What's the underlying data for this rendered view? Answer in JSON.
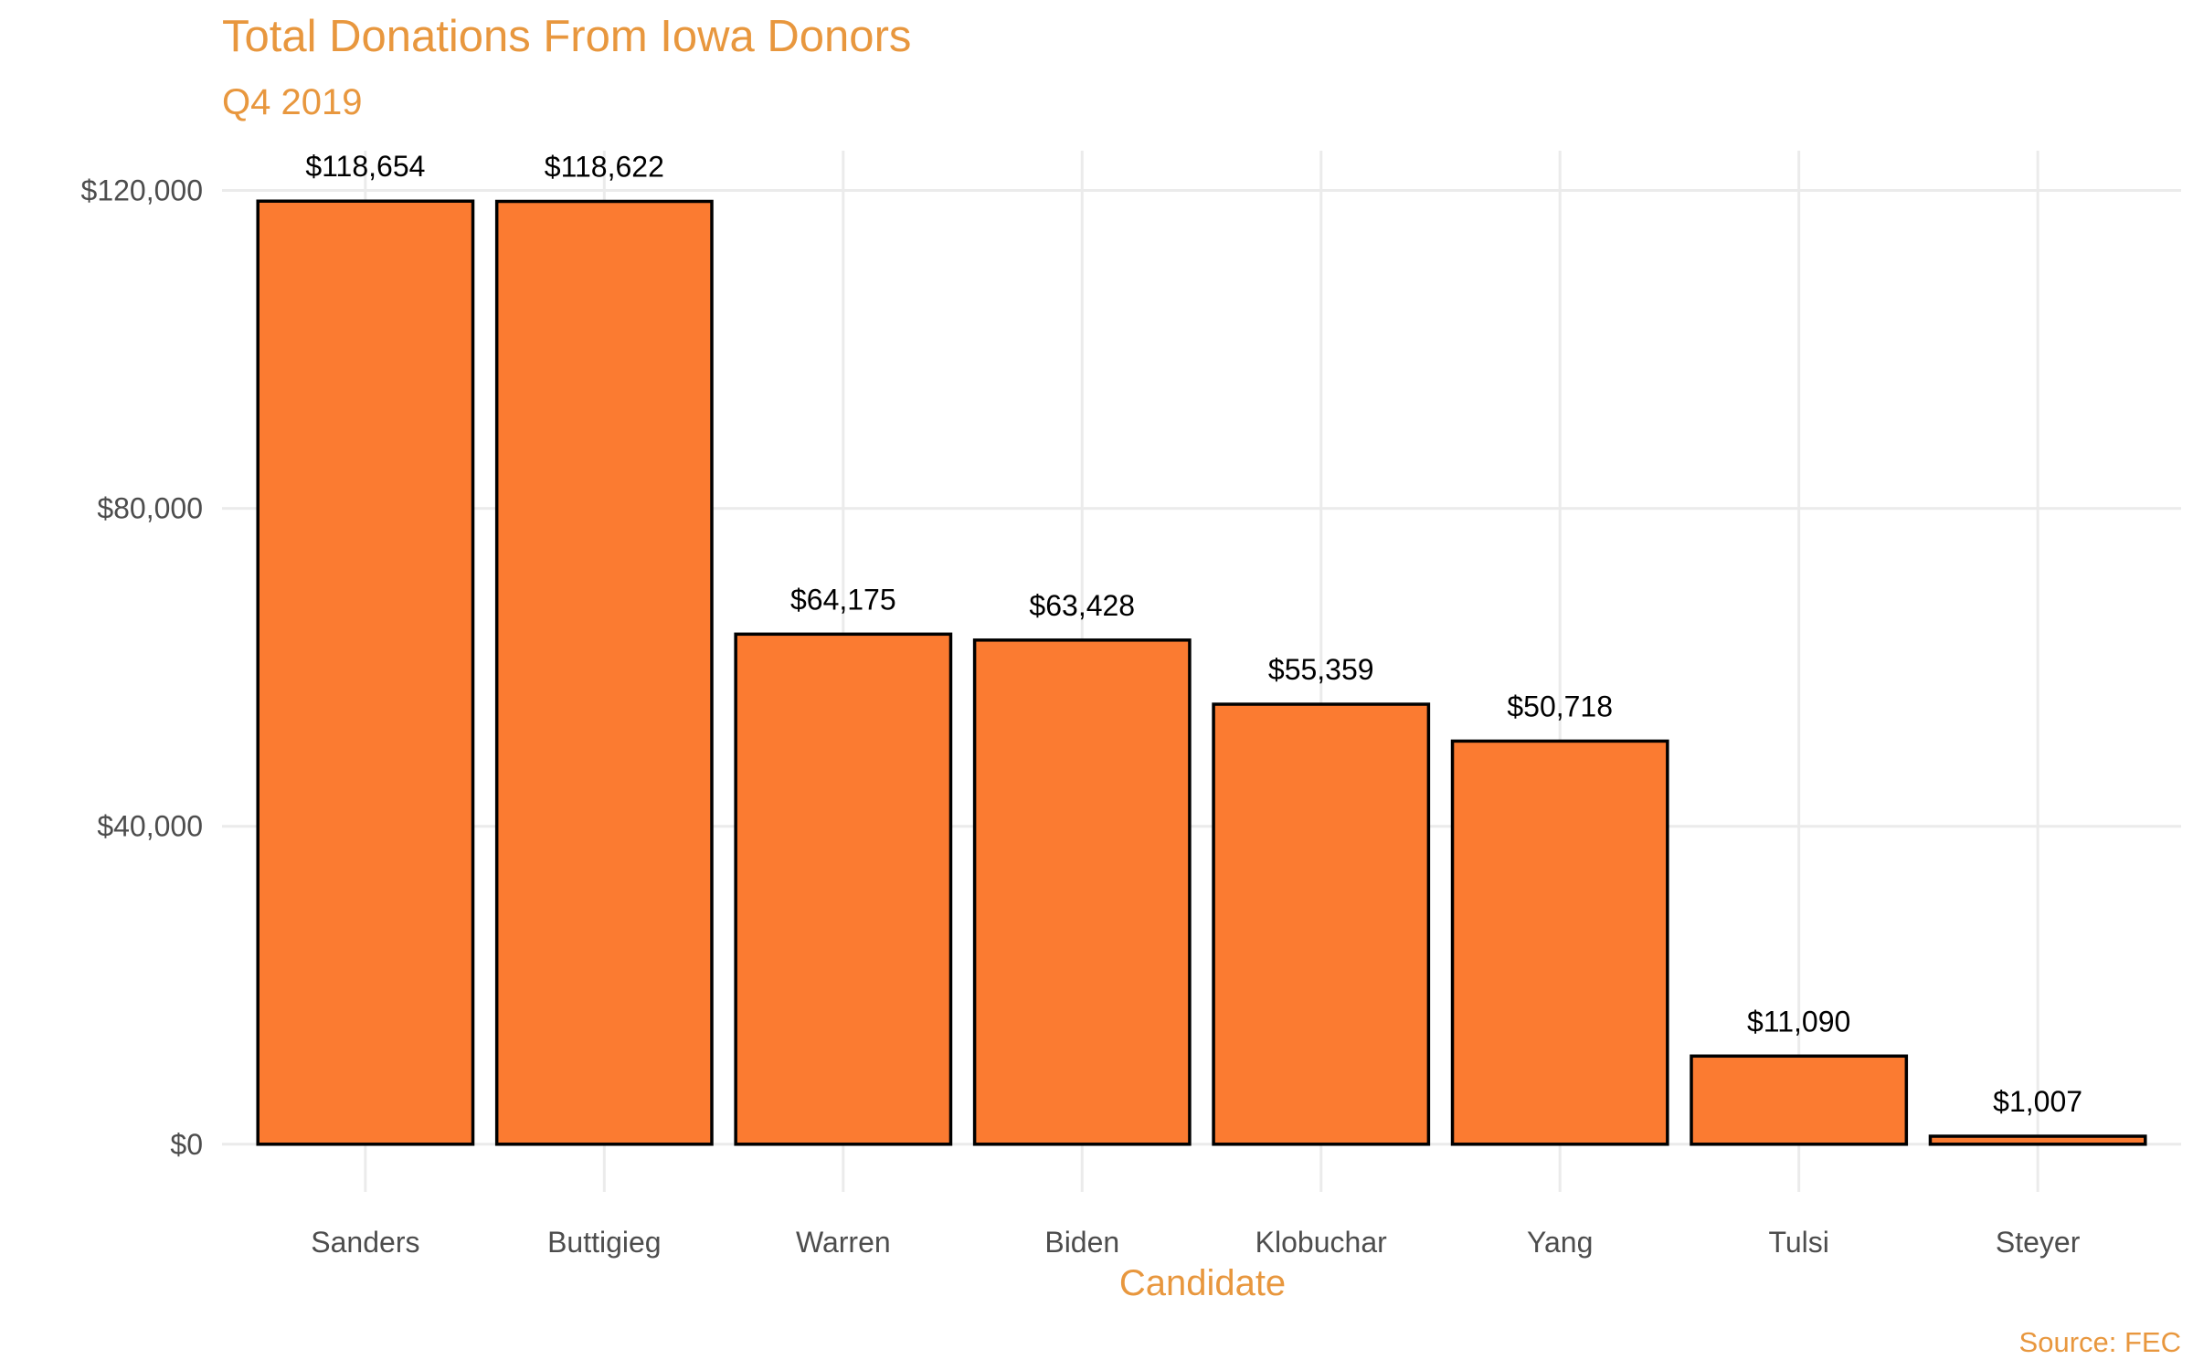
{
  "chart_data": {
    "type": "bar",
    "title": "Total Donations From Iowa Donors",
    "subtitle": "Q4 2019",
    "xlabel": "Candidate",
    "ylabel": "",
    "caption": "Source: FEC",
    "categories": [
      "Sanders",
      "Buttigieg",
      "Warren",
      "Biden",
      "Klobuchar",
      "Yang",
      "Tulsi",
      "Steyer"
    ],
    "values": [
      118654,
      118622,
      64175,
      63428,
      55359,
      50718,
      11090,
      1007
    ],
    "data_labels": [
      "$118,654",
      "$118,622",
      "$64,175",
      "$63,428",
      "$55,359",
      "$50,718",
      "$11,090",
      "$1,007"
    ],
    "y_ticks": [
      0,
      40000,
      80000,
      120000
    ],
    "y_tick_labels": [
      "$0",
      "$40,000",
      "$80,000",
      "$120,000"
    ],
    "ylim": [
      -6000,
      125000
    ],
    "grid": true,
    "legend": "none",
    "colors": {
      "bar_fill": "#FB7B31",
      "bar_stroke": "#000000",
      "text_accent": "#E8973E"
    }
  }
}
